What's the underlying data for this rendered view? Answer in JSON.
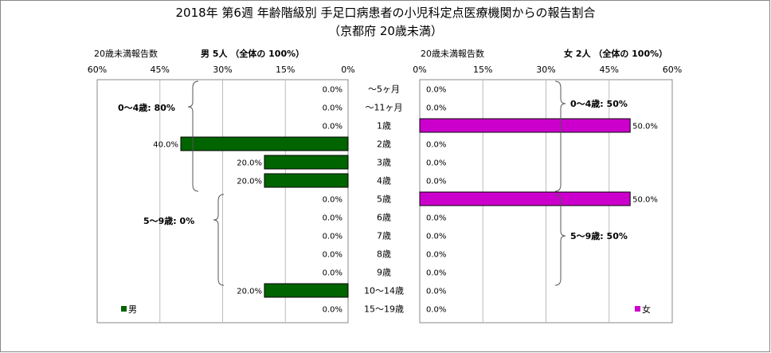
{
  "title_line1": "2018年 第6週 年齢階級別 手足口病患者の小児科定点医療機関からの報告割合",
  "title_line2": "（京都府 20歳未満）",
  "age_groups": [
    "～5ヶ月",
    "～11ヶ月",
    "1歳",
    "2歳",
    "3歳",
    "4歳",
    "5歳",
    "6歳",
    "7歳",
    "8歳",
    "9歳",
    "10～14歳",
    "15～19歳"
  ],
  "male": {
    "axis_caption": "20歳未満報告数",
    "header": "男  5人 （全体の 100%）",
    "legend": "男",
    "color": "#006400",
    "values": [
      0,
      0,
      0,
      40,
      20,
      20,
      0,
      0,
      0,
      0,
      0,
      20,
      0
    ],
    "labels": [
      "0.0%",
      "0.0%",
      "0.0%",
      "40.0%",
      "20.0%",
      "20.0%",
      "0.0%",
      "0.0%",
      "0.0%",
      "0.0%",
      "0.0%",
      "20.0%",
      "0.0%"
    ],
    "bracket_0_4": "0～4歳: 80%",
    "bracket_5_9": "5～9歳: 0%"
  },
  "female": {
    "axis_caption": "20歳未満報告数",
    "header": "女  2人 （全体の 100%）",
    "legend": "女",
    "color": "#cc00cc",
    "values": [
      0,
      0,
      50,
      0,
      0,
      0,
      50,
      0,
      0,
      0,
      0,
      0,
      0
    ],
    "labels": [
      "0.0%",
      "0.0%",
      "50.0%",
      "0.0%",
      "0.0%",
      "0.0%",
      "50.0%",
      "0.0%",
      "0.0%",
      "0.0%",
      "0.0%",
      "0.0%",
      "0.0%"
    ],
    "bracket_0_4": "0～4歳: 50%",
    "bracket_5_9": "5～9歳: 50%"
  },
  "axis_ticks": [
    "0%",
    "15%",
    "30%",
    "45%",
    "60%"
  ],
  "chart_data": {
    "type": "bar",
    "categories": [
      "～5ヶ月",
      "～11ヶ月",
      "1歳",
      "2歳",
      "3歳",
      "4歳",
      "5歳",
      "6歳",
      "7歳",
      "8歳",
      "9歳",
      "10～14歳",
      "15～19歳"
    ],
    "series": [
      {
        "name": "男",
        "values": [
          0,
          0,
          0,
          40,
          20,
          20,
          0,
          0,
          0,
          0,
          0,
          20,
          0
        ]
      },
      {
        "name": "女",
        "values": [
          0,
          0,
          50,
          0,
          0,
          0,
          50,
          0,
          0,
          0,
          0,
          0,
          0
        ]
      }
    ],
    "orientation": "horizontal",
    "xlim": [
      0,
      60
    ],
    "grid": true
  }
}
